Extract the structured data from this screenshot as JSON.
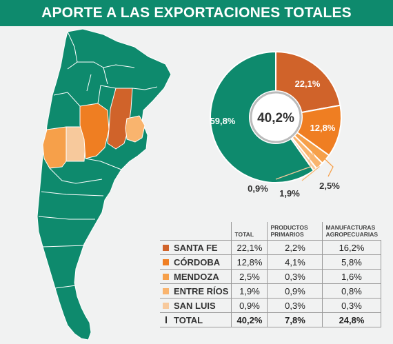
{
  "title": "APORTE A LAS EXPORTACIONES TOTALES",
  "colors": {
    "header": "#0e8a6d",
    "country": "#0e8a6d",
    "border": "#ffffff"
  },
  "chart_data": {
    "type": "pie",
    "center_label": "40,2%",
    "slices": [
      {
        "name": "SANTA FE",
        "value": 22.1,
        "label": "22,1%",
        "color": "#d0632a"
      },
      {
        "name": "CÓRDOBA",
        "value": 12.8,
        "label": "12,8%",
        "color": "#ef7e22"
      },
      {
        "name": "MENDOZA",
        "value": 2.5,
        "label": "2,5%",
        "color": "#f6a04a"
      },
      {
        "name": "ENTRE RÍOS",
        "value": 1.9,
        "label": "1,9%",
        "color": "#f9b46e"
      },
      {
        "name": "SAN LUIS",
        "value": 0.9,
        "label": "0,9%",
        "color": "#f7c99c"
      },
      {
        "name": "",
        "value": 59.8,
        "label": "59,8%",
        "color": "#0e8a6d"
      }
    ]
  },
  "table": {
    "headers": [
      "TOTAL",
      "PRODUCTOS PRIMARIOS",
      "MANUFACTURAS AGROPECUARIAS"
    ],
    "rows": [
      {
        "name": "SANTA FE",
        "color": "#d0632a",
        "total": "22,1%",
        "primarios": "2,2%",
        "manufacturas": "16,2%"
      },
      {
        "name": "CÓRDOBA",
        "color": "#ef7e22",
        "total": "12,8%",
        "primarios": "4,1%",
        "manufacturas": "5,8%"
      },
      {
        "name": "MENDOZA",
        "color": "#f6a04a",
        "total": "2,5%",
        "primarios": "0,3%",
        "manufacturas": "1,6%"
      },
      {
        "name": "ENTRE RÍOS",
        "color": "#f9b46e",
        "total": "1,9%",
        "primarios": "0,9%",
        "manufacturas": "0,8%"
      },
      {
        "name": "SAN LUIS",
        "color": "#f7c99c",
        "total": "0,9%",
        "primarios": "0,3%",
        "manufacturas": "0,3%"
      }
    ],
    "total_row": {
      "name": "TOTAL",
      "total": "40,2%",
      "primarios": "7,8%",
      "manufacturas": "24,8%"
    }
  }
}
